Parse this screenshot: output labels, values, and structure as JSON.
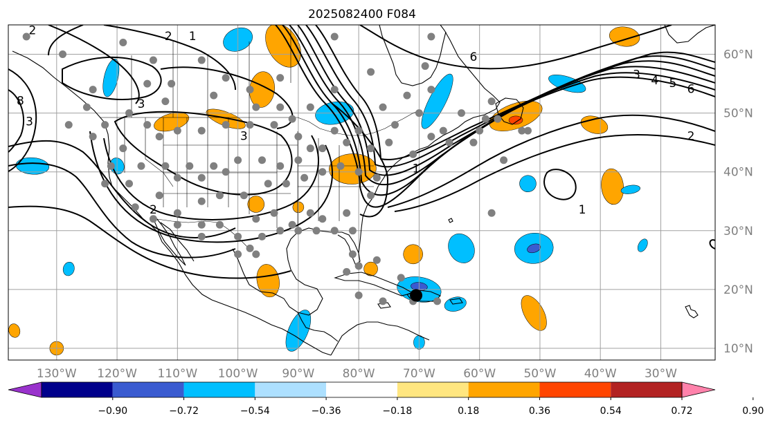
{
  "title": "2025082400 F084",
  "map": {
    "projection": "plate-carree",
    "extent": {
      "lon": [
        -138,
        -21
      ],
      "lat": [
        8,
        65
      ]
    },
    "lat_ticks": [
      {
        "value": 10,
        "label": "10°N"
      },
      {
        "value": 20,
        "label": "20°N"
      },
      {
        "value": 30,
        "label": "30°N"
      },
      {
        "value": 40,
        "label": "40°N"
      },
      {
        "value": 50,
        "label": "50°N"
      },
      {
        "value": 60,
        "label": "60°N"
      }
    ],
    "lon_ticks": [
      {
        "value": -130,
        "label": "130°W"
      },
      {
        "value": -120,
        "label": "120°W"
      },
      {
        "value": -110,
        "label": "110°W"
      },
      {
        "value": -100,
        "label": "100°W"
      },
      {
        "value": -90,
        "label": "90°W"
      },
      {
        "value": -80,
        "label": "80°W"
      },
      {
        "value": -70,
        "label": "70°W"
      },
      {
        "value": -60,
        "label": "60°W"
      },
      {
        "value": -50,
        "label": "50°W"
      },
      {
        "value": -40,
        "label": "40°W"
      },
      {
        "value": -30,
        "label": "30°W"
      }
    ],
    "grid": true,
    "colors": {
      "coast": "#000000",
      "grid": "#a0a0a0",
      "station": "#808080",
      "marker": "#000000",
      "contour": "#000000"
    }
  },
  "colorbar": {
    "boundaries": [
      "−0.90",
      "−0.72",
      "−0.54",
      "−0.36",
      "−0.18",
      "0.18",
      "0.36",
      "0.54",
      "0.72",
      "0.90"
    ],
    "colors": [
      "#9932cc",
      "#00008b",
      "#3a5bd0",
      "#00bfff",
      "#ade0ff",
      "#ffffff",
      "#ffe680",
      "#ffa500",
      "#ff4500",
      "#b22222",
      "#ff82ab"
    ],
    "extend": "both"
  },
  "anomaly_regions": [
    {
      "lon": -92.5,
      "lat": 61.5,
      "value": 0.45,
      "color": "#ffa500"
    },
    {
      "lon": -96,
      "lat": 54,
      "value": 0.45,
      "color": "#ffa500"
    },
    {
      "lon": -111,
      "lat": 48.5,
      "value": 0.45,
      "color": "#ffa500"
    },
    {
      "lon": -102,
      "lat": 49,
      "value": 0.45,
      "color": "#ffa500"
    },
    {
      "lon": -81,
      "lat": 40.5,
      "value": 0.45,
      "color": "#ffa500"
    },
    {
      "lon": -97,
      "lat": 34.5,
      "value": 0.45,
      "color": "#ffa500"
    },
    {
      "lon": -90,
      "lat": 34,
      "value": 0.45,
      "color": "#ffa500"
    },
    {
      "lon": -95,
      "lat": 21.5,
      "value": 0.45,
      "color": "#ffa500"
    },
    {
      "lon": -71,
      "lat": 26,
      "value": 0.45,
      "color": "#ffa500"
    },
    {
      "lon": -78,
      "lat": 23.5,
      "value": 0.45,
      "color": "#ffa500"
    },
    {
      "lon": -54,
      "lat": 49.5,
      "value": 0.55,
      "color": "#ffa500"
    },
    {
      "lon": -41,
      "lat": 48,
      "value": 0.45,
      "color": "#ffa500"
    },
    {
      "lon": -38,
      "lat": 37.5,
      "value": 0.45,
      "color": "#ffa500"
    },
    {
      "lon": -51,
      "lat": 16,
      "value": 0.45,
      "color": "#ffa500"
    },
    {
      "lon": -36,
      "lat": 63,
      "value": 0.45,
      "color": "#ffa500"
    },
    {
      "lon": -137,
      "lat": 13,
      "value": 0.45,
      "color": "#ffa500"
    },
    {
      "lon": -130,
      "lat": 10,
      "value": 0.45,
      "color": "#ffa500"
    },
    {
      "lon": -54,
      "lat": 48.8,
      "value": 0.63,
      "color": "#ff4500"
    },
    {
      "lon": -100,
      "lat": 62.5,
      "value": -0.45,
      "color": "#00bfff"
    },
    {
      "lon": -121,
      "lat": 56,
      "value": -0.45,
      "color": "#00bfff"
    },
    {
      "lon": -84,
      "lat": 50,
      "value": -0.45,
      "color": "#00bfff"
    },
    {
      "lon": -67,
      "lat": 52,
      "value": -0.45,
      "color": "#00bfff"
    },
    {
      "lon": -134,
      "lat": 41,
      "value": -0.45,
      "color": "#00bfff"
    },
    {
      "lon": -120,
      "lat": 41,
      "value": -0.45,
      "color": "#00bfff"
    },
    {
      "lon": -45.5,
      "lat": 55,
      "value": -0.45,
      "color": "#00bfff"
    },
    {
      "lon": -51,
      "lat": 27,
      "value": -0.45,
      "color": "#00bfff"
    },
    {
      "lon": -63,
      "lat": 27,
      "value": -0.45,
      "color": "#00bfff"
    },
    {
      "lon": -70,
      "lat": 20,
      "value": -0.45,
      "color": "#00bfff"
    },
    {
      "lon": -64,
      "lat": 17.5,
      "value": -0.45,
      "color": "#00bfff"
    },
    {
      "lon": -90,
      "lat": 13,
      "value": -0.45,
      "color": "#00bfff"
    },
    {
      "lon": -70,
      "lat": 11,
      "value": -0.45,
      "color": "#00bfff"
    },
    {
      "lon": -52,
      "lat": 38,
      "value": -0.45,
      "color": "#00bfff"
    },
    {
      "lon": -128,
      "lat": 23.5,
      "value": -0.45,
      "color": "#00bfff"
    },
    {
      "lon": -35,
      "lat": 37,
      "value": -0.45,
      "color": "#00bfff"
    },
    {
      "lon": -33,
      "lat": 27.5,
      "value": -0.45,
      "color": "#00bfff"
    },
    {
      "lon": -70,
      "lat": 20.5,
      "value": -0.6,
      "color": "#3a5bd0"
    },
    {
      "lon": -51,
      "lat": 27,
      "value": -0.6,
      "color": "#3a5bd0"
    }
  ],
  "contour_labels": [
    {
      "text": "2",
      "lon": -134,
      "lat": 64
    },
    {
      "text": "2",
      "lon": -111.5,
      "lat": 63
    },
    {
      "text": "1",
      "lon": -107.5,
      "lat": 63
    },
    {
      "text": "6",
      "lon": -61,
      "lat": 59.5
    },
    {
      "text": "3",
      "lon": -116,
      "lat": 51.5
    },
    {
      "text": "3",
      "lon": -99,
      "lat": 46
    },
    {
      "text": "3",
      "lon": -134.5,
      "lat": 48.5
    },
    {
      "text": "8",
      "lon": -136,
      "lat": 52
    },
    {
      "text": "2",
      "lon": -114,
      "lat": 33.5
    },
    {
      "text": "1",
      "lon": -43,
      "lat": 33.5
    },
    {
      "text": "3",
      "lon": -34,
      "lat": 56.5
    },
    {
      "text": "4",
      "lon": -31,
      "lat": 55.5
    },
    {
      "text": "5",
      "lon": -28,
      "lat": 55
    },
    {
      "text": "6",
      "lon": -25,
      "lat": 54
    },
    {
      "text": "2",
      "lon": -25,
      "lat": 46
    },
    {
      "text": "1",
      "lon": -70.5,
      "lat": 40.5
    }
  ],
  "stations": [
    [
      -135,
      63
    ],
    [
      -129,
      60
    ],
    [
      -119,
      62
    ],
    [
      -114,
      59
    ],
    [
      -106,
      59
    ],
    [
      -102,
      56
    ],
    [
      -115,
      55
    ],
    [
      -124,
      54
    ],
    [
      -125,
      51
    ],
    [
      -112,
      52
    ],
    [
      -111,
      55
    ],
    [
      -104,
      53
    ],
    [
      -98,
      54
    ],
    [
      -93,
      56
    ],
    [
      -97,
      51
    ],
    [
      -93,
      51
    ],
    [
      -91,
      49
    ],
    [
      -88,
      51
    ],
    [
      -84,
      54
    ],
    [
      -84,
      63
    ],
    [
      -68,
      63
    ],
    [
      -69,
      58
    ],
    [
      -78,
      57
    ],
    [
      -84,
      47
    ],
    [
      -90,
      46
    ],
    [
      -94,
      48
    ],
    [
      -98,
      48
    ],
    [
      -102,
      48
    ],
    [
      -106,
      47
    ],
    [
      -110,
      47
    ],
    [
      -113,
      46
    ],
    [
      -115,
      48
    ],
    [
      -118,
      50
    ],
    [
      -122,
      48
    ],
    [
      -128,
      48
    ],
    [
      -124,
      46
    ],
    [
      -119,
      44
    ],
    [
      -121,
      41
    ],
    [
      -116,
      41
    ],
    [
      -112,
      41
    ],
    [
      -108,
      41
    ],
    [
      -104,
      41
    ],
    [
      -100,
      42
    ],
    [
      -96,
      42
    ],
    [
      -93,
      41
    ],
    [
      -90,
      42
    ],
    [
      -88,
      44
    ],
    [
      -86,
      44
    ],
    [
      -82,
      45
    ],
    [
      -78,
      44
    ],
    [
      -75,
      45
    ],
    [
      -71,
      43
    ],
    [
      -68,
      46
    ],
    [
      -65,
      45
    ],
    [
      -60,
      47
    ],
    [
      -57,
      49
    ],
    [
      -53,
      47
    ],
    [
      -58,
      52
    ],
    [
      -63,
      50
    ],
    [
      -68,
      54
    ],
    [
      -72,
      53
    ],
    [
      -76,
      51
    ],
    [
      -80,
      47
    ],
    [
      -74,
      48
    ],
    [
      -78,
      36
    ],
    [
      -77,
      39
    ],
    [
      -80,
      40
    ],
    [
      -83,
      41
    ],
    [
      -86,
      40
    ],
    [
      -89,
      39
    ],
    [
      -92,
      38
    ],
    [
      -95,
      38
    ],
    [
      -99,
      36
    ],
    [
      -103,
      36
    ],
    [
      -106,
      35
    ],
    [
      -110,
      33
    ],
    [
      -113,
      36
    ],
    [
      -117,
      34
    ],
    [
      -122,
      38
    ],
    [
      -118,
      38
    ],
    [
      -110,
      39
    ],
    [
      -106,
      39
    ],
    [
      -102,
      40
    ],
    [
      -97,
      32
    ],
    [
      -94,
      33
    ],
    [
      -91,
      31
    ],
    [
      -88,
      33
    ],
    [
      -86,
      32
    ],
    [
      -82,
      33
    ],
    [
      -81,
      30
    ],
    [
      -84,
      30
    ],
    [
      -87,
      30
    ],
    [
      -90,
      30
    ],
    [
      -93,
      30
    ],
    [
      -96,
      29
    ],
    [
      -98,
      27
    ],
    [
      -100,
      29
    ],
    [
      -103,
      31
    ],
    [
      -106,
      31
    ],
    [
      -110,
      31
    ],
    [
      -114,
      32
    ],
    [
      -106,
      29
    ],
    [
      -100,
      26
    ],
    [
      -97,
      26
    ],
    [
      -81,
      26
    ],
    [
      -80,
      24
    ],
    [
      -77,
      25
    ],
    [
      -82,
      23
    ],
    [
      -76,
      18
    ],
    [
      -80,
      19
    ],
    [
      -71,
      18
    ],
    [
      -67,
      18
    ],
    [
      -73,
      22
    ],
    [
      -58,
      33
    ],
    [
      -59,
      49
    ],
    [
      -52,
      47
    ],
    [
      -56,
      42
    ],
    [
      -61,
      45
    ],
    [
      -66,
      47
    ],
    [
      -70,
      50
    ],
    [
      -80,
      47
    ]
  ],
  "markers": [
    {
      "name": "black-dot",
      "lon": -70.5,
      "lat": 19
    }
  ]
}
